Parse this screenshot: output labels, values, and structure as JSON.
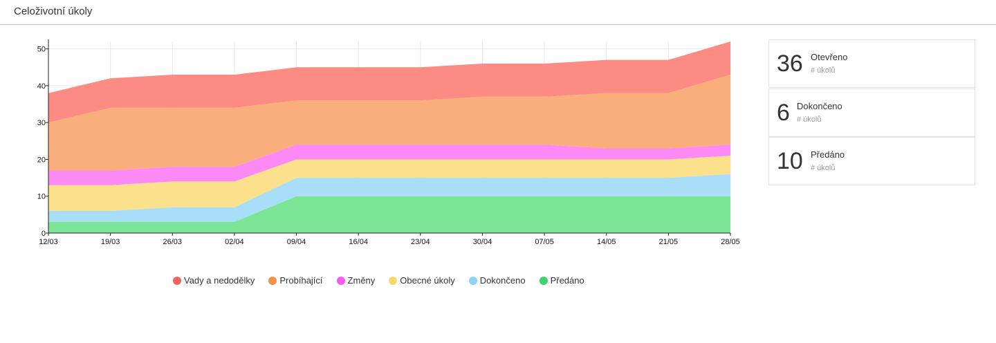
{
  "header": {
    "title": "Celoživotní úkoly"
  },
  "chart_data": {
    "type": "area",
    "stacked": true,
    "categories": [
      "12/03",
      "19/03",
      "26/03",
      "02/04",
      "09/04",
      "16/04",
      "23/04",
      "30/04",
      "07/05",
      "14/05",
      "21/05",
      "28/05"
    ],
    "ylim": [
      0,
      52
    ],
    "yticks": [
      0,
      10,
      20,
      30,
      40,
      50
    ],
    "grid": true,
    "legend_position": "bottom",
    "series": [
      {
        "name": "Předáno",
        "color": "#7be495",
        "values": [
          3,
          3,
          3,
          3,
          10,
          10,
          10,
          10,
          10,
          10,
          10,
          10
        ]
      },
      {
        "name": "Dokončeno",
        "color": "#a8def8",
        "values": [
          3,
          3,
          4,
          4,
          5,
          5,
          5,
          5,
          5,
          5,
          5,
          6
        ]
      },
      {
        "name": "Obecné úkoly",
        "color": "#fbe18c",
        "values": [
          7,
          7,
          7,
          7,
          5,
          5,
          5,
          5,
          5,
          5,
          5,
          5
        ]
      },
      {
        "name": "Změny",
        "color": "#fb8af4",
        "values": [
          4,
          4,
          4,
          4,
          4,
          4,
          4,
          4,
          4,
          3,
          3,
          3
        ]
      },
      {
        "name": "Probíhající",
        "color": "#f9ae7b",
        "values": [
          13,
          17,
          16,
          16,
          12,
          12,
          12,
          13,
          13,
          15,
          15,
          19
        ]
      },
      {
        "name": "Vady a nedodělky",
        "color": "#fc8b84",
        "values": [
          8,
          8,
          9,
          9,
          9,
          9,
          9,
          9,
          9,
          9,
          9,
          9
        ]
      }
    ]
  },
  "legend": [
    {
      "label": "Vady a nedodělky",
      "color": "#f0625e"
    },
    {
      "label": "Probíhající",
      "color": "#f3914c"
    },
    {
      "label": "Změny",
      "color": "#f45df0"
    },
    {
      "label": "Obecné úkoly",
      "color": "#fad86e"
    },
    {
      "label": "Dokončeno",
      "color": "#8bd4f6"
    },
    {
      "label": "Předáno",
      "color": "#3fd36e"
    }
  ],
  "stats": [
    {
      "value": "36",
      "label": "Otevřeno",
      "sub": "# úkolů"
    },
    {
      "value": "6",
      "label": "Dokončeno",
      "sub": "# úkolů"
    },
    {
      "value": "10",
      "label": "Předáno",
      "sub": "# úkolů"
    }
  ]
}
